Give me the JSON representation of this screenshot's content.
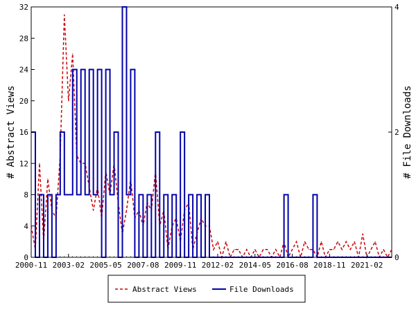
{
  "chart_data": {
    "type": "line",
    "title": "",
    "xlabel": "",
    "ylabel_left": "# Abstract Views",
    "ylabel_right": "# File Downloads",
    "x_ticks": [
      "2000-11",
      "2003-02",
      "2005-05",
      "2007-08",
      "2009-11",
      "2012-02",
      "2014-05",
      "2016-08",
      "2018-11",
      "2021-02"
    ],
    "x_range": [
      "2000-11",
      "2022-08"
    ],
    "y_left_range": [
      0,
      32
    ],
    "y_left_ticks": [
      "0",
      "4",
      "8",
      "12",
      "16",
      "20",
      "24",
      "28",
      "32"
    ],
    "y_right_range": [
      0,
      4
    ],
    "y_right_ticks": [
      "0",
      "2",
      "4"
    ],
    "grid": false,
    "legend_position": "bottom-center",
    "series": [
      {
        "name": "Abstract Views",
        "axis": "left",
        "color": "#cc0000",
        "style": "dashed",
        "x": [
          "2000-11",
          "2001-02",
          "2001-05",
          "2001-08",
          "2001-11",
          "2002-02",
          "2002-05",
          "2002-08",
          "2002-11",
          "2003-02",
          "2003-05",
          "2003-08",
          "2003-11",
          "2004-02",
          "2004-05",
          "2004-08",
          "2004-11",
          "2005-02",
          "2005-05",
          "2005-08",
          "2005-11",
          "2006-02",
          "2006-05",
          "2006-08",
          "2006-11",
          "2007-02",
          "2007-05",
          "2007-08",
          "2007-11",
          "2008-02",
          "2008-05",
          "2008-08",
          "2008-11",
          "2009-02",
          "2009-05",
          "2009-08",
          "2009-11",
          "2010-02",
          "2010-05",
          "2010-08",
          "2010-11",
          "2011-02",
          "2011-05",
          "2011-08",
          "2011-11",
          "2012-02",
          "2012-05",
          "2012-08",
          "2012-11",
          "2013-02",
          "2013-05",
          "2013-08",
          "2013-11",
          "2014-02",
          "2014-05",
          "2014-08",
          "2014-11",
          "2015-02",
          "2015-05",
          "2015-08",
          "2015-11",
          "2016-02",
          "2016-05",
          "2016-08",
          "2016-11",
          "2017-02",
          "2017-05",
          "2017-08",
          "2017-11",
          "2018-02",
          "2018-05",
          "2018-08",
          "2018-11",
          "2019-02",
          "2019-05",
          "2019-08",
          "2019-11",
          "2020-02",
          "2020-05",
          "2020-08",
          "2020-11",
          "2021-02",
          "2021-05",
          "2021-08",
          "2021-11",
          "2022-02",
          "2022-05",
          "2022-08"
        ],
        "values": [
          4,
          1,
          12,
          2,
          10,
          6,
          5,
          13,
          31,
          20,
          26,
          13,
          12,
          12,
          9,
          6,
          9,
          5,
          11,
          8,
          12,
          7,
          3,
          6,
          10,
          5,
          6,
          4,
          7,
          6,
          11,
          4,
          6,
          1,
          4,
          5,
          2,
          6,
          7,
          1,
          3,
          5,
          4,
          4,
          1,
          2,
          0,
          2,
          0,
          1,
          1,
          0,
          1,
          0,
          1,
          0,
          1,
          1,
          0,
          1,
          0,
          2,
          0,
          1,
          2,
          0,
          2,
          1,
          1,
          0,
          2,
          0,
          1,
          1,
          2,
          1,
          2,
          1,
          2,
          0,
          3,
          0,
          1,
          2,
          0,
          1,
          0,
          1
        ]
      },
      {
        "name": "File Downloads",
        "axis": "right",
        "color": "#0000aa",
        "style": "solid",
        "x": [
          "2000-11",
          "2001-02",
          "2001-05",
          "2001-08",
          "2001-11",
          "2002-02",
          "2002-05",
          "2002-08",
          "2002-11",
          "2003-02",
          "2003-05",
          "2003-08",
          "2003-11",
          "2004-02",
          "2004-05",
          "2004-08",
          "2004-11",
          "2005-02",
          "2005-05",
          "2005-08",
          "2005-11",
          "2006-02",
          "2006-05",
          "2006-08",
          "2006-11",
          "2007-02",
          "2007-05",
          "2007-08",
          "2007-11",
          "2008-02",
          "2008-05",
          "2008-08",
          "2008-11",
          "2009-02",
          "2009-05",
          "2009-08",
          "2009-11",
          "2010-02",
          "2010-05",
          "2010-08",
          "2010-11",
          "2011-02",
          "2011-05",
          "2011-08",
          "2011-11",
          "2012-02",
          "2012-05",
          "2012-08",
          "2012-11",
          "2013-02",
          "2013-05",
          "2013-08",
          "2013-11",
          "2014-02",
          "2014-05",
          "2014-08",
          "2014-11",
          "2015-02",
          "2015-05",
          "2015-08",
          "2015-11",
          "2016-02",
          "2016-05",
          "2016-08",
          "2016-11",
          "2017-02",
          "2017-05",
          "2017-08",
          "2017-11",
          "2018-02",
          "2018-05",
          "2018-08",
          "2018-11",
          "2019-02",
          "2019-05",
          "2019-08",
          "2019-11",
          "2020-02",
          "2020-05",
          "2020-08",
          "2020-11",
          "2021-02",
          "2021-05",
          "2021-08",
          "2021-11",
          "2022-02",
          "2022-05",
          "2022-08"
        ],
        "values": [
          2,
          0,
          1,
          0,
          1,
          0,
          1,
          2,
          1,
          1,
          3,
          1,
          3,
          1,
          3,
          1,
          3,
          0,
          3,
          1,
          2,
          0,
          4,
          1,
          3,
          0,
          1,
          0,
          1,
          0,
          2,
          0,
          1,
          0,
          1,
          0,
          2,
          0,
          1,
          0,
          1,
          0,
          1,
          0,
          0,
          0,
          0,
          0,
          0,
          0,
          0,
          0,
          0,
          0,
          0,
          0,
          0,
          0,
          0,
          0,
          0,
          1,
          0,
          0,
          0,
          0,
          0,
          0,
          1,
          0,
          0,
          0,
          0,
          0,
          0,
          0,
          0,
          0,
          0,
          0,
          0,
          0,
          0,
          0,
          0,
          0,
          0,
          0
        ]
      }
    ]
  }
}
